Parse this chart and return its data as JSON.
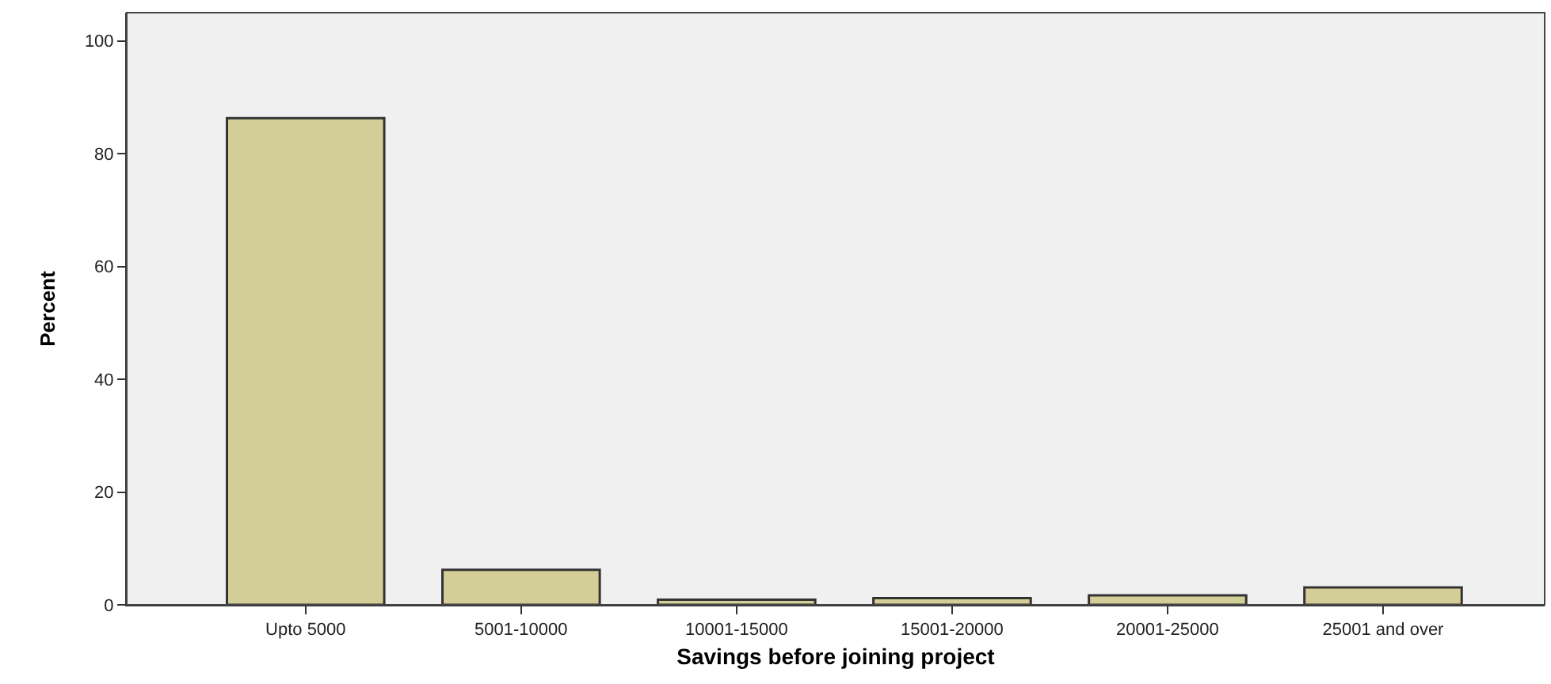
{
  "chart_data": {
    "type": "bar",
    "xlabel": "Savings before joining project",
    "ylabel": "Percent",
    "categories": [
      "Upto 5000",
      "5001-10000",
      "10001-15000",
      "15001-20000",
      "20001-25000",
      "25001 and over"
    ],
    "values": [
      86.3,
      6.2,
      0.9,
      1.2,
      1.7,
      3.1
    ],
    "color": "#d3ce97",
    "ylim": [
      0,
      105
    ],
    "yticks": [
      0,
      20,
      40,
      60,
      80,
      100
    ]
  }
}
